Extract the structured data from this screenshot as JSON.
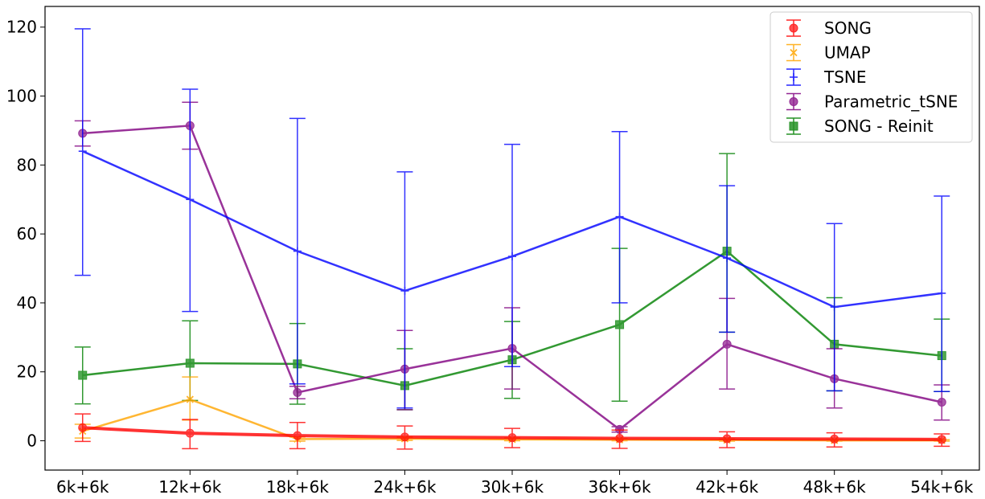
{
  "chart_data": {
    "type": "line",
    "title": "",
    "xlabel": "",
    "ylabel": "",
    "categories": [
      "6k+6k",
      "12k+6k",
      "18k+6k",
      "24k+6k",
      "30k+6k",
      "36k+6k",
      "42k+6k",
      "48k+6k",
      "54k+6k"
    ],
    "ylim": [
      -8.5,
      126
    ],
    "yticks": [
      0,
      20,
      40,
      60,
      80,
      100,
      120
    ],
    "grid": false,
    "legend_position": "top-right",
    "series": [
      {
        "name": "SONG",
        "color": "#ff0000",
        "marker": "circle",
        "values": [
          3.8,
          2.2,
          1.5,
          1.1,
          0.9,
          0.7,
          0.6,
          0.5,
          0.4
        ],
        "err_lower": [
          4.0,
          4.5,
          3.8,
          3.5,
          2.9,
          2.9,
          2.6,
          2.3,
          2.0
        ],
        "err_upper": [
          4.0,
          4.0,
          3.8,
          3.2,
          2.7,
          2.4,
          2.0,
          1.8,
          1.6
        ]
      },
      {
        "name": "UMAP",
        "color": "#ffa500",
        "marker": "x",
        "values": [
          2.8,
          12.0,
          0.5,
          0.6,
          0.4,
          0.3,
          0.2,
          0.1,
          0.1
        ],
        "err_lower": [
          2.0,
          6.0,
          0.6,
          0.5,
          0.4,
          0.3,
          0.3,
          0.2,
          0.2
        ],
        "err_upper": [
          2.0,
          6.5,
          0.6,
          0.5,
          0.4,
          0.3,
          0.3,
          0.2,
          0.2
        ]
      },
      {
        "name": "TSNE",
        "color": "#0000ff",
        "marker": "plus",
        "values": [
          84,
          70,
          55,
          43.5,
          53.5,
          65,
          53,
          38.8,
          42.8
        ],
        "err_lower": [
          36,
          32.5,
          38.5,
          34,
          32,
          25,
          21.5,
          24.3,
          28.5
        ],
        "err_upper": [
          35.5,
          32,
          38.5,
          34.5,
          32.5,
          24.7,
          21,
          24.2,
          28.2
        ]
      },
      {
        "name": "Parametric_tSNE",
        "color": "#800080",
        "marker": "circle",
        "values": [
          89.2,
          91.4,
          14,
          20.8,
          26.8,
          3.3,
          28,
          18,
          11.2
        ],
        "err_lower": [
          3.7,
          6.8,
          1.8,
          11.8,
          11.8,
          0.8,
          13,
          8.5,
          5.2
        ],
        "err_upper": [
          3.6,
          6.8,
          1.8,
          11.2,
          11.8,
          0.8,
          13.3,
          8.7,
          5.0
        ]
      },
      {
        "name": "SONG - Reinit",
        "color": "#008000",
        "marker": "square",
        "values": [
          19,
          22.5,
          22.3,
          16,
          23.5,
          33.7,
          55,
          28,
          24.7
        ],
        "err_lower": [
          8.3,
          10.8,
          11.7,
          7.0,
          11.2,
          22.2,
          23.5,
          13.5,
          10.4
        ],
        "err_upper": [
          8.2,
          12.3,
          11.7,
          10.7,
          11.1,
          22.1,
          28.3,
          13.5,
          10.6
        ]
      }
    ]
  }
}
